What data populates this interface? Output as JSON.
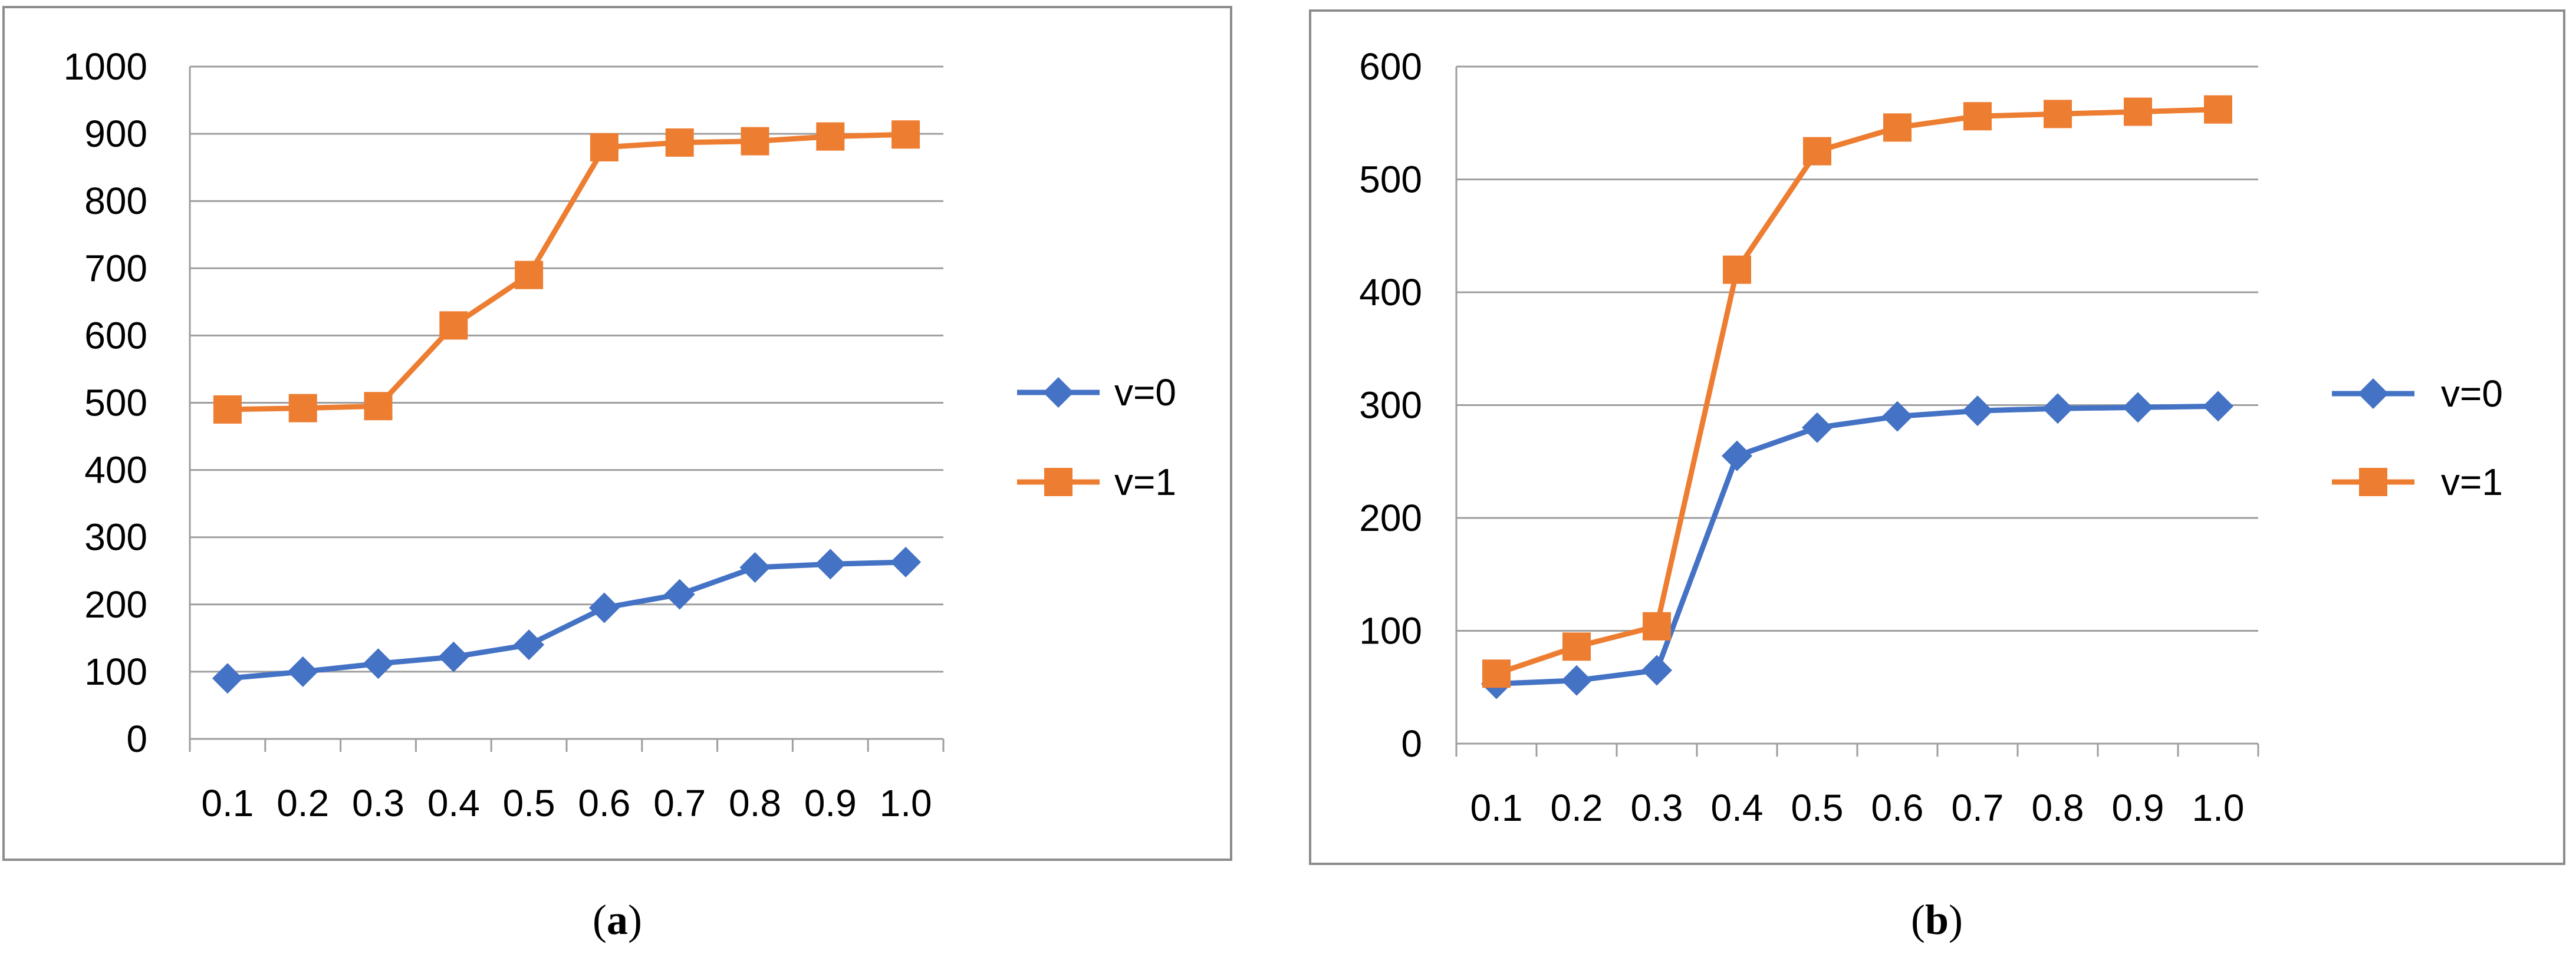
{
  "figure": {
    "panels": [
      {
        "id": "a",
        "caption_open": "(",
        "caption_letter": "a",
        "caption_close": ")"
      },
      {
        "id": "b",
        "caption_open": "(",
        "caption_letter": "b",
        "caption_close": ")"
      }
    ]
  },
  "colors": {
    "v0": "#4472C4",
    "v1": "#ED7D31"
  },
  "chart_data": [
    {
      "type": "line",
      "title": "",
      "xlabel": "",
      "ylabel": "",
      "categories": [
        "0.1",
        "0.2",
        "0.3",
        "0.4",
        "0.5",
        "0.6",
        "0.7",
        "0.8",
        "0.9",
        "1.0"
      ],
      "ylim": [
        0,
        1000
      ],
      "yticks": [
        "0",
        "100",
        "200",
        "300",
        "400",
        "500",
        "600",
        "700",
        "800",
        "900",
        "1000"
      ],
      "grid": true,
      "legend_position": "right",
      "series": [
        {
          "name": "v=0",
          "marker": "diamond",
          "values": [
            90,
            100,
            112,
            122,
            140,
            195,
            215,
            255,
            260,
            263
          ]
        },
        {
          "name": "v=1",
          "marker": "square",
          "values": [
            490,
            492,
            495,
            615,
            690,
            880,
            887,
            889,
            896,
            899
          ]
        }
      ]
    },
    {
      "type": "line",
      "title": "",
      "xlabel": "",
      "ylabel": "",
      "categories": [
        "0.1",
        "0.2",
        "0.3",
        "0.4",
        "0.5",
        "0.6",
        "0.7",
        "0.8",
        "0.9",
        "1.0"
      ],
      "ylim": [
        0,
        600
      ],
      "yticks": [
        "0",
        "100",
        "200",
        "300",
        "400",
        "500",
        "600"
      ],
      "grid": true,
      "legend_position": "right",
      "series": [
        {
          "name": "v=0",
          "marker": "diamond",
          "values": [
            53,
            56,
            65,
            255,
            280,
            290,
            295,
            297,
            298,
            299
          ]
        },
        {
          "name": "v=1",
          "marker": "square",
          "values": [
            62,
            86,
            104,
            420,
            525,
            546,
            556,
            558,
            560,
            562
          ]
        }
      ]
    }
  ]
}
